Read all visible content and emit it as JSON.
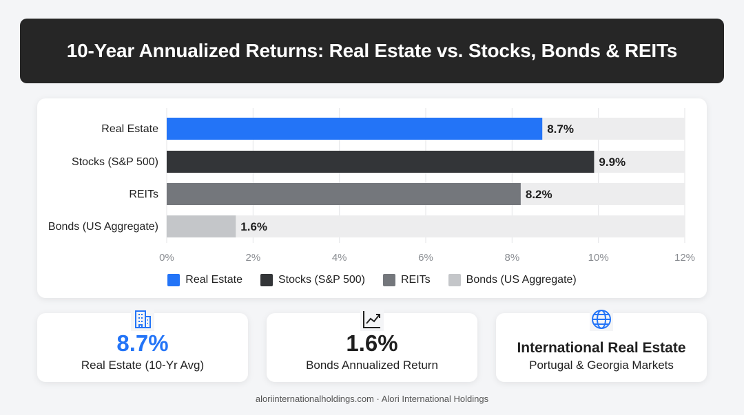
{
  "header": {
    "title": "10-Year Annualized Returns: Real Estate vs. Stocks, Bonds & REITs"
  },
  "chart_data": {
    "type": "bar",
    "orientation": "horizontal",
    "categories": [
      "Real Estate",
      "Stocks (S&P 500)",
      "REITs",
      "Bonds (US Aggregate)"
    ],
    "values": [
      8.7,
      9.9,
      8.2,
      1.6
    ],
    "data_labels": [
      "8.7%",
      "9.9%",
      "8.2%",
      "1.6%"
    ],
    "colors": [
      "#2374f7",
      "#333538",
      "#74777c",
      "#c4c6c9"
    ],
    "xlim": [
      0,
      12
    ],
    "x_ticks": [
      "0%",
      "2%",
      "4%",
      "6%",
      "8%",
      "10%",
      "12%"
    ],
    "grid": true,
    "legend_position": "bottom",
    "legend": [
      "Real Estate",
      "Stocks (S&P 500)",
      "REITs",
      "Bonds (US Aggregate)"
    ]
  },
  "stats": [
    {
      "icon": "building-icon",
      "value": "8.7%",
      "label": "Real Estate (10-Yr Avg)",
      "color": "#2374f7"
    },
    {
      "icon": "trend-chart-icon",
      "value": "1.6%",
      "label": "Bonds Annualized Return",
      "color": "#1f1f1f"
    },
    {
      "icon": "globe-icon",
      "title": "International Real Estate",
      "label": "Portugal & Georgia Markets",
      "color": "#2374f7"
    }
  ],
  "footer": {
    "text": "aloriinternationalholdings.com · Alori International Holdings"
  }
}
